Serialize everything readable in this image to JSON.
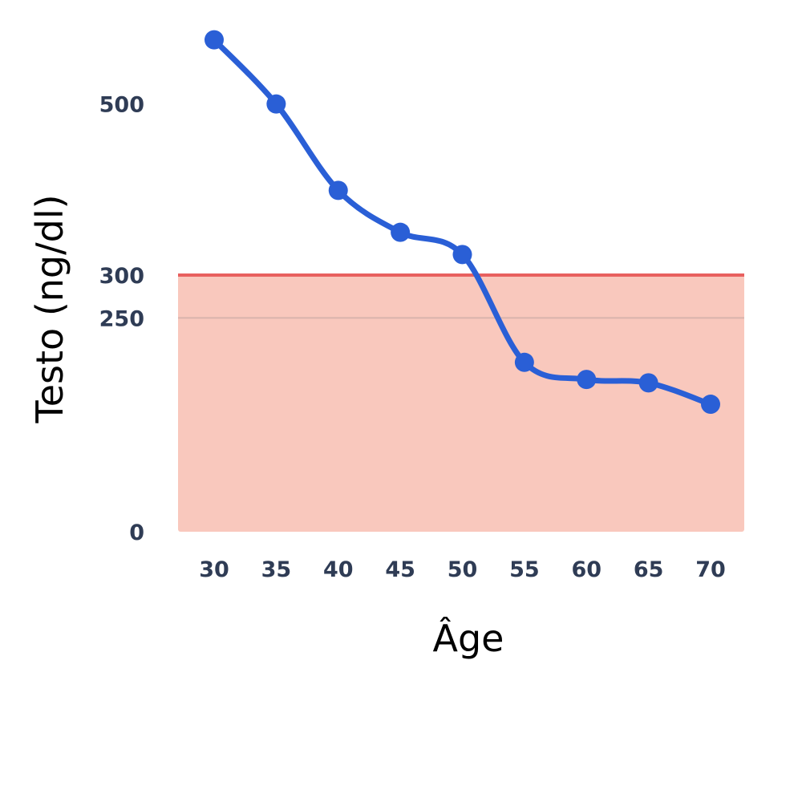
{
  "chart_data": {
    "type": "line",
    "title": "",
    "xlabel": "Âge",
    "ylabel": "Testo (ng/dl)",
    "x": [
      30,
      35,
      40,
      45,
      50,
      55,
      60,
      65,
      70
    ],
    "series": [
      {
        "values": [
          575,
          500,
          399,
          350,
          324,
          198,
          178,
          174,
          149
        ],
        "color": "#2a5fd6"
      }
    ],
    "xticks": [
      "30",
      "35",
      "40",
      "45",
      "50",
      "55",
      "60",
      "65",
      "70"
    ],
    "yticks": [
      {
        "value": 0,
        "label": "0"
      },
      {
        "value": 250,
        "label": "250"
      },
      {
        "value": 300,
        "label": "300"
      },
      {
        "value": 500,
        "label": "500"
      }
    ],
    "ylim": [
      0,
      600
    ],
    "threshold_line": {
      "value": 300,
      "color": "#e8605f"
    },
    "reference_line": {
      "value": 250,
      "color": "#d9b3ad"
    },
    "shaded_region": {
      "from": 0,
      "to": 300,
      "color": "#f9c8bd"
    },
    "grid": false
  }
}
